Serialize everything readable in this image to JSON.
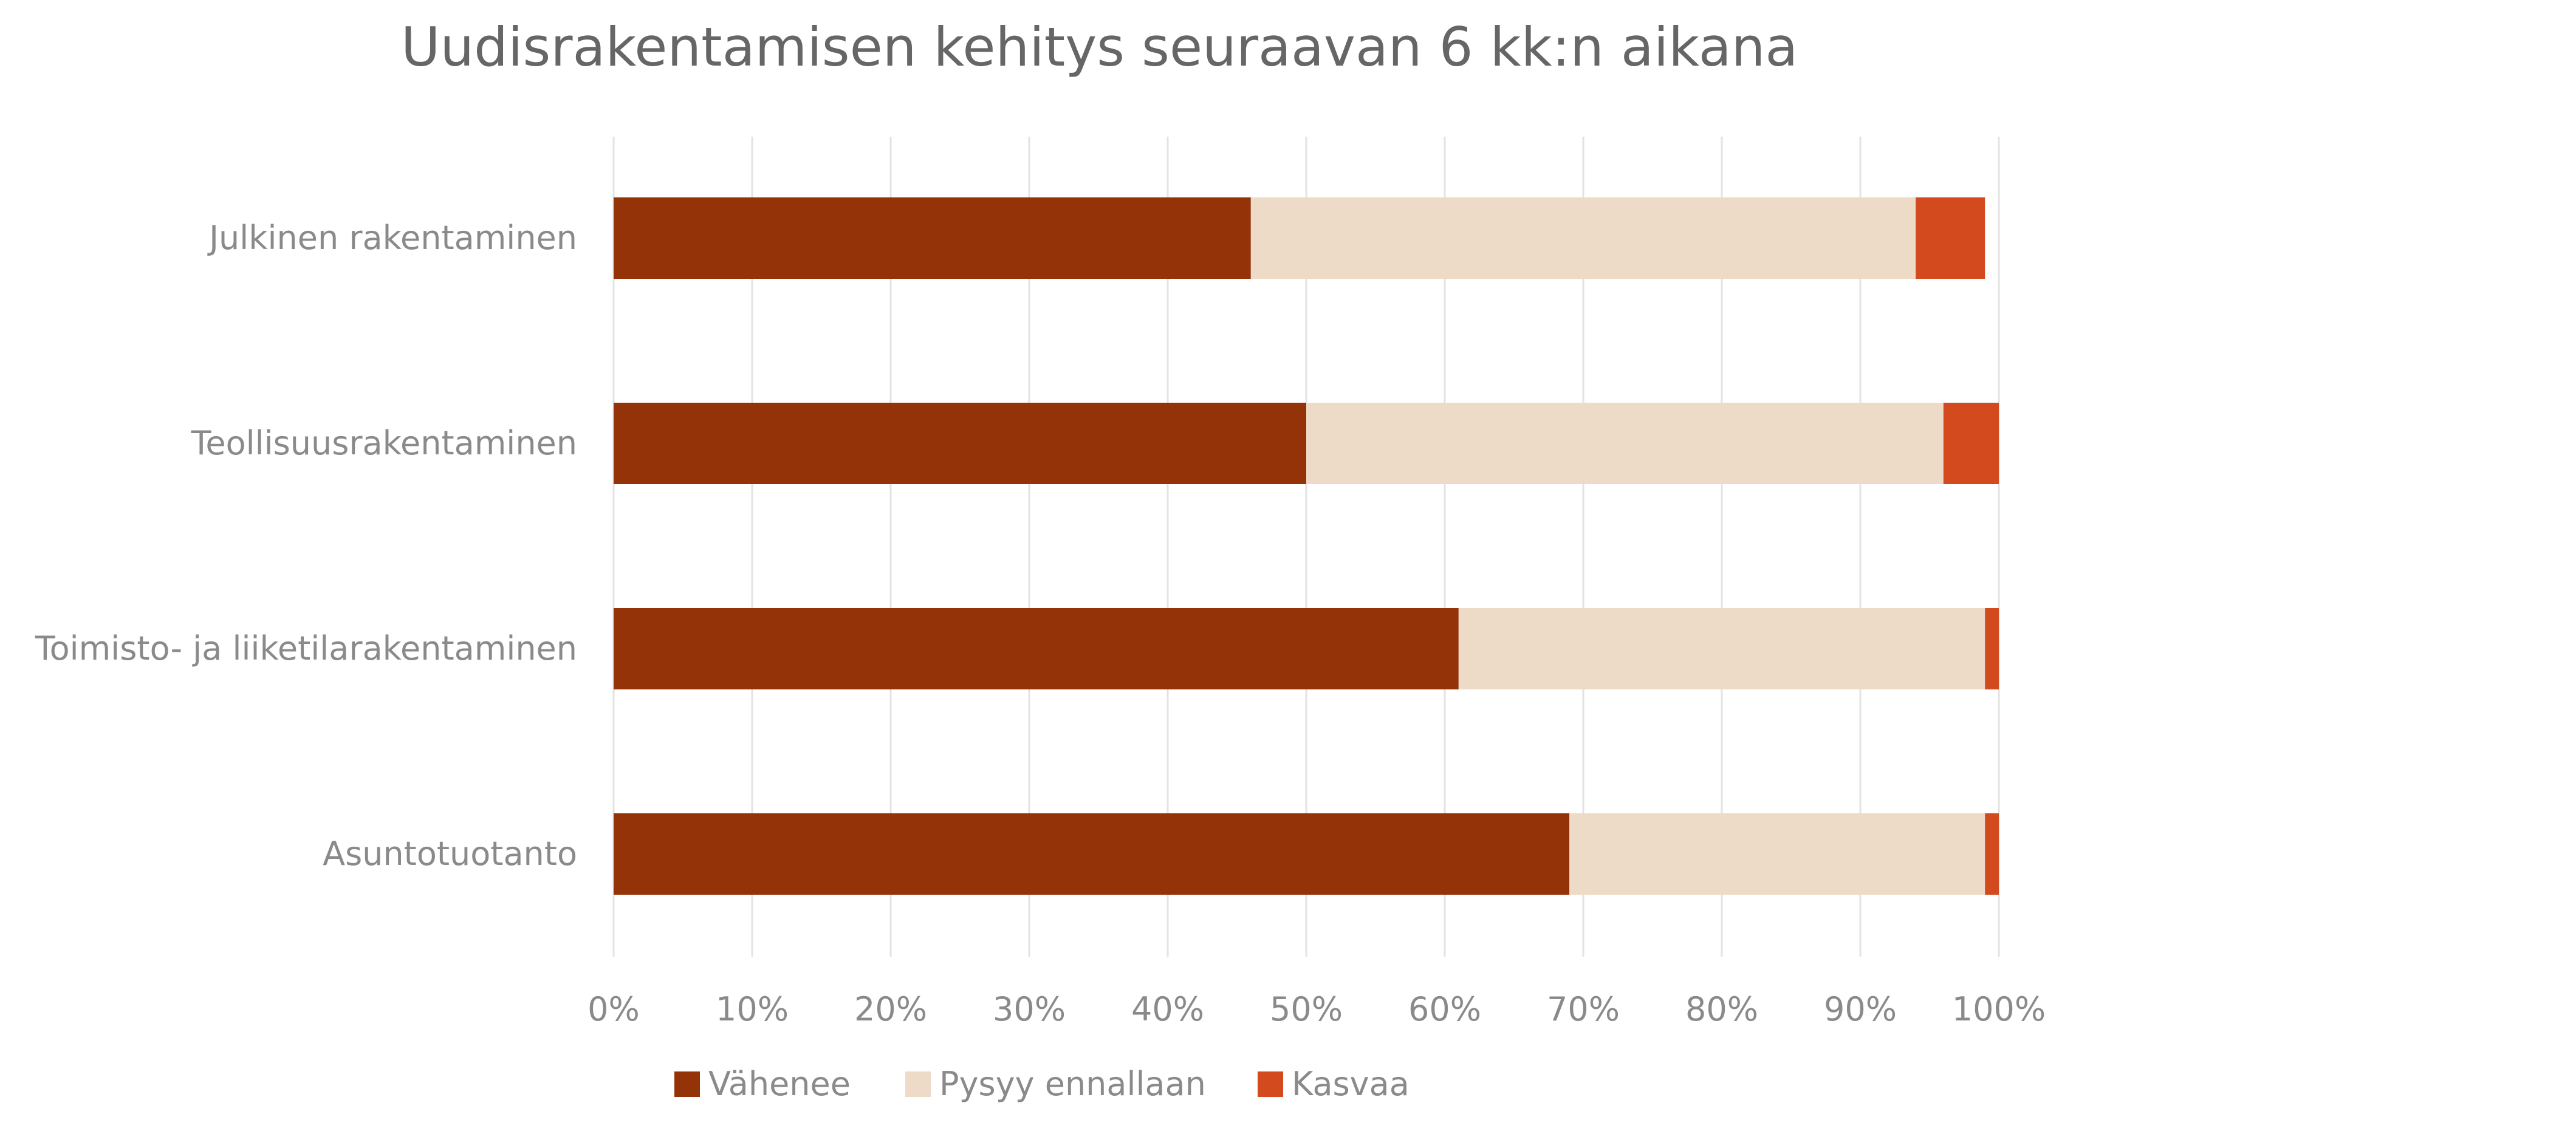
{
  "chart_data": {
    "type": "bar",
    "orientation": "horizontal",
    "stacked": "percent",
    "title": "Uudisrakentamisen kehitys seuraavan 6 kk:n aikana",
    "categories": [
      "Julkinen rakentaminen",
      "Teollisuusrakentaminen",
      "Toimisto- ja liiketilarakentaminen",
      "Asuntotuotanto"
    ],
    "series": [
      {
        "name": "Vähenee",
        "color": "#943208",
        "values": [
          46,
          50,
          61,
          69
        ]
      },
      {
        "name": "Pysyy ennallaan",
        "color": "#EDDBC8",
        "values": [
          48,
          46,
          38,
          30
        ]
      },
      {
        "name": "Kasvaa",
        "color": "#D24A1E",
        "values": [
          5,
          4,
          1,
          1
        ]
      }
    ],
    "xlim": [
      0,
      100
    ],
    "x_ticks": [
      "0%",
      "10%",
      "20%",
      "30%",
      "40%",
      "50%",
      "60%",
      "70%",
      "80%",
      "90%",
      "100%"
    ],
    "grid": "vertical",
    "legend_position": "bottom"
  }
}
